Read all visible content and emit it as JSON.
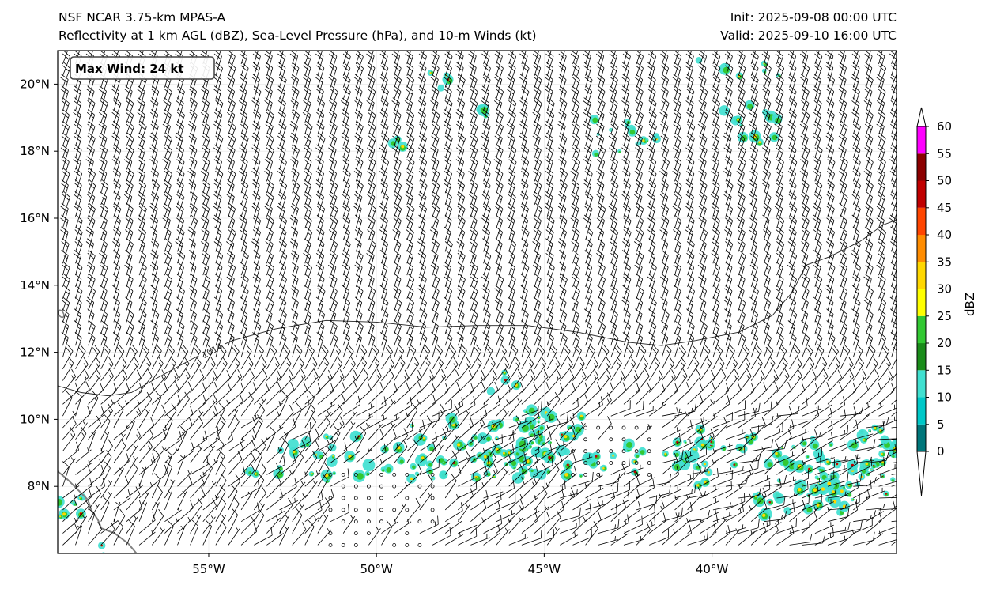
{
  "header": {
    "title_left_1": "NSF NCAR 3.75-km MPAS-A",
    "title_left_2": "Reflectivity at 1 km AGL (dBZ), Sea-Level Pressure (hPa), and 10-m Winds (kt)",
    "title_right_1": "Init: 2025-09-08 00:00 UTC",
    "title_right_2": "Valid: 2025-09-10 16:00 UTC"
  },
  "map": {
    "lon_range": [
      -59.5,
      -34.5
    ],
    "lat_range": [
      6.0,
      21.0
    ],
    "lat_ticks": [
      {
        "value": 8,
        "label": "8°N"
      },
      {
        "value": 10,
        "label": "10°N"
      },
      {
        "value": 12,
        "label": "12°N"
      },
      {
        "value": 14,
        "label": "14°N"
      },
      {
        "value": 16,
        "label": "16°N"
      },
      {
        "value": 18,
        "label": "18°N"
      },
      {
        "value": 20,
        "label": "20°N"
      }
    ],
    "lon_ticks": [
      {
        "value": -55,
        "label": "55°W"
      },
      {
        "value": -50,
        "label": "50°W"
      },
      {
        "value": -45,
        "label": "45°W"
      },
      {
        "value": -40,
        "label": "40°W"
      }
    ],
    "max_wind_label": "Max Wind: 24 kt",
    "isobar": {
      "value": 1014,
      "label": "1014",
      "points": [
        [
          -59.5,
          11.0
        ],
        [
          -58.8,
          10.8
        ],
        [
          -58,
          10.7
        ],
        [
          -57.3,
          10.8
        ],
        [
          -56.6,
          11.2
        ],
        [
          -55.5,
          11.8
        ],
        [
          -54.3,
          12.35
        ],
        [
          -53,
          12.7
        ],
        [
          -51.5,
          12.95
        ],
        [
          -50,
          12.9
        ],
        [
          -48.5,
          12.75
        ],
        [
          -47,
          12.8
        ],
        [
          -45.5,
          12.8
        ],
        [
          -44,
          12.6
        ],
        [
          -42.5,
          12.3
        ],
        [
          -41.5,
          12.2
        ],
        [
          -40.5,
          12.35
        ],
        [
          -39.2,
          12.6
        ],
        [
          -38.2,
          13.1
        ],
        [
          -37.6,
          13.8
        ],
        [
          -37.2,
          14.6
        ],
        [
          -36.5,
          14.85
        ],
        [
          -35.6,
          15.3
        ],
        [
          -34.9,
          15.8
        ],
        [
          -34.5,
          15.95
        ]
      ]
    },
    "colors": {
      "coast": "#808080",
      "isobar": "#222222",
      "barb": "#000000"
    }
  },
  "colorbar": {
    "label": "dBZ",
    "ticks": [
      "0",
      "5",
      "10",
      "15",
      "20",
      "25",
      "30",
      "35",
      "40",
      "45",
      "50",
      "55",
      "60"
    ],
    "colors": [
      "#00767a",
      "#00c8c8",
      "#40e0d0",
      "#1a8c1a",
      "#32c832",
      "#ffff00",
      "#ffd700",
      "#ff8c00",
      "#ff4500",
      "#c00000",
      "#8b0000",
      "#ff00ff",
      "#ffe4e1"
    ]
  },
  "chart_data": {
    "type": "map",
    "projection": "PlateCarree",
    "extent": {
      "lon": [
        -59.5,
        -34.5
      ],
      "lat": [
        6.0,
        21.0
      ]
    },
    "fields": [
      {
        "name": "Reflectivity at 1 km AGL",
        "units": "dBZ"
      },
      {
        "name": "Sea-Level Pressure",
        "units": "hPa",
        "contours": [
          1014
        ]
      },
      {
        "name": "10-m Winds",
        "units": "kt",
        "max": 24
      }
    ],
    "trade_wind_direction": "east-northeast",
    "colorbar_range": [
      0,
      60
    ]
  }
}
